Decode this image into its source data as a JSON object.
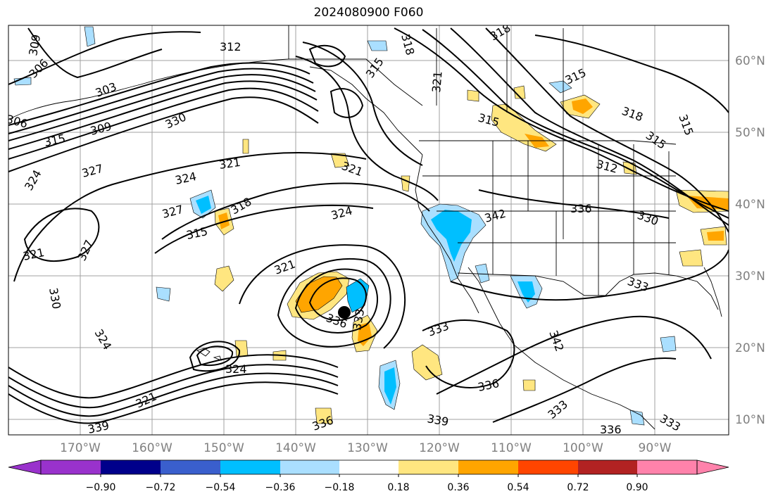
{
  "title": "2024080900 F060",
  "map": {
    "lat_labels": [
      "60°N",
      "50°N",
      "40°N",
      "30°N",
      "20°N",
      "10°N"
    ],
    "lon_labels": [
      "170°W",
      "160°W",
      "150°W",
      "140°W",
      "130°W",
      "120°W",
      "110°W",
      "100°W",
      "90°W"
    ],
    "contour_labels": [
      "309",
      "306",
      "303",
      "312",
      "318",
      "315",
      "321",
      "330",
      "309",
      "306",
      "315",
      "327",
      "324",
      "321",
      "324",
      "327",
      "318",
      "315",
      "321",
      "327",
      "330",
      "324",
      "321",
      "324",
      "324",
      "321",
      "339",
      "336",
      "333",
      "336",
      "339",
      "333",
      "342",
      "336",
      "336",
      "330",
      "333",
      "342",
      "333",
      "336",
      "333",
      "312",
      "315",
      "318",
      "315",
      "315",
      "315",
      "318",
      "321"
    ],
    "fill_colors": {
      "neg_strong": "#00bfff",
      "neg_light": "#aadfff",
      "pos_light": "#ffe680",
      "pos_orange": "#ffa500",
      "grid": "#a0a0a0",
      "contour": "#000000"
    }
  },
  "colorbar": {
    "tick_labels": [
      "−0.90",
      "−0.72",
      "−0.54",
      "−0.36",
      "−0.18",
      "0.18",
      "0.36",
      "0.54",
      "0.72",
      "0.90"
    ],
    "colors": [
      "#9932cc",
      "#00008b",
      "#3a5fcd",
      "#00bfff",
      "#aadfff",
      "#ffffff",
      "#ffe680",
      "#ffa500",
      "#ff4500",
      "#b22222",
      "#ff82ab"
    ]
  }
}
